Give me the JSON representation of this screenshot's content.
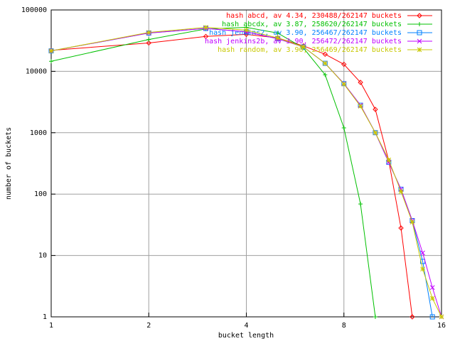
{
  "chart_data": {
    "type": "line",
    "x_label": "bucket length",
    "y_label": "number of buckets",
    "x": [
      1,
      2,
      3,
      4,
      5,
      6,
      7,
      8,
      9,
      10,
      11,
      12,
      13,
      14,
      15,
      16
    ],
    "xscale": "log",
    "yscale": "log",
    "grid": true,
    "legend": "top-right",
    "xlim": [
      1,
      16
    ],
    "xticks": [
      1,
      2,
      4,
      8,
      16
    ],
    "ylim": [
      1,
      100000
    ],
    "yticks": [
      1,
      10,
      100,
      1000,
      10000,
      100000
    ],
    "series": [
      {
        "name": "hash abcd, av 4.34, 230488/262147 buckets",
        "color": "#ff0000",
        "marker": "diamond",
        "values": [
          22000,
          29000,
          37000,
          40000,
          35000,
          26000,
          19000,
          13000,
          6600,
          2400,
          350,
          28,
          1,
          null,
          null,
          null
        ]
      },
      {
        "name": "hash abcdx, av 3.87, 258620/262147 buckets",
        "color": "#00c000",
        "marker": "plus",
        "values": [
          14600,
          33000,
          49000,
          52000,
          42000,
          24000,
          8800,
          1200,
          69,
          1,
          null,
          null,
          null,
          null,
          null,
          null
        ]
      },
      {
        "name": "hash jenkins2, av 3.90, 256467/262147 buckets",
        "color": "#0080ff",
        "marker": "square",
        "values": [
          21500,
          42000,
          50000,
          44000,
          34000,
          25000,
          13500,
          6300,
          2800,
          1000,
          330,
          120,
          37,
          8,
          1,
          null
        ]
      },
      {
        "name": "hash jenkins2b, av 3.90, 256472/262147 buckets",
        "color": "#c000ff",
        "marker": "cross",
        "values": [
          21500,
          42000,
          50000,
          44000,
          34000,
          25000,
          13500,
          6300,
          2800,
          1000,
          330,
          120,
          37,
          11,
          3,
          1
        ]
      },
      {
        "name": "hash random, av 3.90, 256469/262147 buckets",
        "color": "#c8c800",
        "marker": "star",
        "values": [
          21500,
          43000,
          52000,
          47000,
          35000,
          25000,
          13500,
          6200,
          2700,
          1000,
          360,
          110,
          35,
          6,
          2,
          1
        ]
      }
    ]
  }
}
